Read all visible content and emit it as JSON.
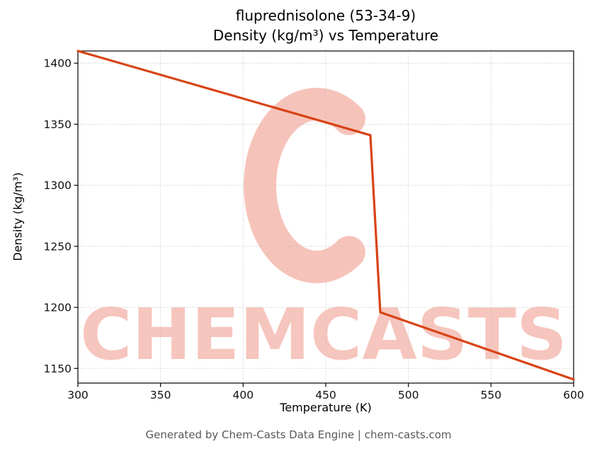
{
  "page": {
    "title_line1": "fluprednisolone (53-34-9)",
    "title_line2": "Density (kg/m³) vs Temperature",
    "footer": "Generated by Chem-Casts Data Engine | chem-casts.com",
    "watermark_text": "CHEMCASTS",
    "watermark_color": "#e8604a"
  },
  "chart_data": {
    "type": "line",
    "title": "fluprednisolone (53-34-9) — Density (kg/m³) vs Temperature",
    "xlabel": "Temperature (K)",
    "ylabel": "Density (kg/m³)",
    "series": [
      {
        "name": "Density",
        "x": [
          300,
          477,
          483,
          600
        ],
        "y": [
          1410,
          1341,
          1196,
          1141
        ]
      }
    ],
    "xlim": [
      300,
      600
    ],
    "ylim": [
      1138,
      1410
    ],
    "x_ticks": [
      300,
      350,
      400,
      450,
      500,
      550,
      600
    ],
    "y_ticks": [
      1150,
      1200,
      1250,
      1300,
      1350,
      1400
    ],
    "grid": true,
    "grid_style": "dotted",
    "legend": "none",
    "line_color": "#d84315",
    "frame_color": "#000000",
    "tick_label_color": "#111111"
  }
}
